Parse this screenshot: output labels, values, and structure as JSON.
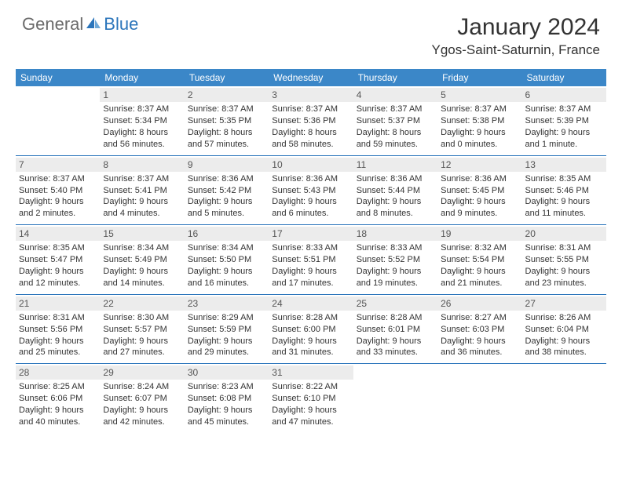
{
  "logo": {
    "text1": "General",
    "text2": "Blue"
  },
  "title": "January 2024",
  "location": "Ygos-Saint-Saturnin, France",
  "colors": {
    "header_bg": "#3b87c8",
    "header_text": "#ffffff",
    "rule": "#2b75bb",
    "daynum_bg": "#ececec",
    "body_text": "#333333",
    "logo_gray": "#6b6b6b",
    "logo_blue": "#2b75bb"
  },
  "weekdays": [
    "Sunday",
    "Monday",
    "Tuesday",
    "Wednesday",
    "Thursday",
    "Friday",
    "Saturday"
  ],
  "weeks": [
    [
      {
        "day": "",
        "sunrise": "",
        "sunset": "",
        "daylight1": "",
        "daylight2": ""
      },
      {
        "day": "1",
        "sunrise": "Sunrise: 8:37 AM",
        "sunset": "Sunset: 5:34 PM",
        "daylight1": "Daylight: 8 hours",
        "daylight2": "and 56 minutes."
      },
      {
        "day": "2",
        "sunrise": "Sunrise: 8:37 AM",
        "sunset": "Sunset: 5:35 PM",
        "daylight1": "Daylight: 8 hours",
        "daylight2": "and 57 minutes."
      },
      {
        "day": "3",
        "sunrise": "Sunrise: 8:37 AM",
        "sunset": "Sunset: 5:36 PM",
        "daylight1": "Daylight: 8 hours",
        "daylight2": "and 58 minutes."
      },
      {
        "day": "4",
        "sunrise": "Sunrise: 8:37 AM",
        "sunset": "Sunset: 5:37 PM",
        "daylight1": "Daylight: 8 hours",
        "daylight2": "and 59 minutes."
      },
      {
        "day": "5",
        "sunrise": "Sunrise: 8:37 AM",
        "sunset": "Sunset: 5:38 PM",
        "daylight1": "Daylight: 9 hours",
        "daylight2": "and 0 minutes."
      },
      {
        "day": "6",
        "sunrise": "Sunrise: 8:37 AM",
        "sunset": "Sunset: 5:39 PM",
        "daylight1": "Daylight: 9 hours",
        "daylight2": "and 1 minute."
      }
    ],
    [
      {
        "day": "7",
        "sunrise": "Sunrise: 8:37 AM",
        "sunset": "Sunset: 5:40 PM",
        "daylight1": "Daylight: 9 hours",
        "daylight2": "and 2 minutes."
      },
      {
        "day": "8",
        "sunrise": "Sunrise: 8:37 AM",
        "sunset": "Sunset: 5:41 PM",
        "daylight1": "Daylight: 9 hours",
        "daylight2": "and 4 minutes."
      },
      {
        "day": "9",
        "sunrise": "Sunrise: 8:36 AM",
        "sunset": "Sunset: 5:42 PM",
        "daylight1": "Daylight: 9 hours",
        "daylight2": "and 5 minutes."
      },
      {
        "day": "10",
        "sunrise": "Sunrise: 8:36 AM",
        "sunset": "Sunset: 5:43 PM",
        "daylight1": "Daylight: 9 hours",
        "daylight2": "and 6 minutes."
      },
      {
        "day": "11",
        "sunrise": "Sunrise: 8:36 AM",
        "sunset": "Sunset: 5:44 PM",
        "daylight1": "Daylight: 9 hours",
        "daylight2": "and 8 minutes."
      },
      {
        "day": "12",
        "sunrise": "Sunrise: 8:36 AM",
        "sunset": "Sunset: 5:45 PM",
        "daylight1": "Daylight: 9 hours",
        "daylight2": "and 9 minutes."
      },
      {
        "day": "13",
        "sunrise": "Sunrise: 8:35 AM",
        "sunset": "Sunset: 5:46 PM",
        "daylight1": "Daylight: 9 hours",
        "daylight2": "and 11 minutes."
      }
    ],
    [
      {
        "day": "14",
        "sunrise": "Sunrise: 8:35 AM",
        "sunset": "Sunset: 5:47 PM",
        "daylight1": "Daylight: 9 hours",
        "daylight2": "and 12 minutes."
      },
      {
        "day": "15",
        "sunrise": "Sunrise: 8:34 AM",
        "sunset": "Sunset: 5:49 PM",
        "daylight1": "Daylight: 9 hours",
        "daylight2": "and 14 minutes."
      },
      {
        "day": "16",
        "sunrise": "Sunrise: 8:34 AM",
        "sunset": "Sunset: 5:50 PM",
        "daylight1": "Daylight: 9 hours",
        "daylight2": "and 16 minutes."
      },
      {
        "day": "17",
        "sunrise": "Sunrise: 8:33 AM",
        "sunset": "Sunset: 5:51 PM",
        "daylight1": "Daylight: 9 hours",
        "daylight2": "and 17 minutes."
      },
      {
        "day": "18",
        "sunrise": "Sunrise: 8:33 AM",
        "sunset": "Sunset: 5:52 PM",
        "daylight1": "Daylight: 9 hours",
        "daylight2": "and 19 minutes."
      },
      {
        "day": "19",
        "sunrise": "Sunrise: 8:32 AM",
        "sunset": "Sunset: 5:54 PM",
        "daylight1": "Daylight: 9 hours",
        "daylight2": "and 21 minutes."
      },
      {
        "day": "20",
        "sunrise": "Sunrise: 8:31 AM",
        "sunset": "Sunset: 5:55 PM",
        "daylight1": "Daylight: 9 hours",
        "daylight2": "and 23 minutes."
      }
    ],
    [
      {
        "day": "21",
        "sunrise": "Sunrise: 8:31 AM",
        "sunset": "Sunset: 5:56 PM",
        "daylight1": "Daylight: 9 hours",
        "daylight2": "and 25 minutes."
      },
      {
        "day": "22",
        "sunrise": "Sunrise: 8:30 AM",
        "sunset": "Sunset: 5:57 PM",
        "daylight1": "Daylight: 9 hours",
        "daylight2": "and 27 minutes."
      },
      {
        "day": "23",
        "sunrise": "Sunrise: 8:29 AM",
        "sunset": "Sunset: 5:59 PM",
        "daylight1": "Daylight: 9 hours",
        "daylight2": "and 29 minutes."
      },
      {
        "day": "24",
        "sunrise": "Sunrise: 8:28 AM",
        "sunset": "Sunset: 6:00 PM",
        "daylight1": "Daylight: 9 hours",
        "daylight2": "and 31 minutes."
      },
      {
        "day": "25",
        "sunrise": "Sunrise: 8:28 AM",
        "sunset": "Sunset: 6:01 PM",
        "daylight1": "Daylight: 9 hours",
        "daylight2": "and 33 minutes."
      },
      {
        "day": "26",
        "sunrise": "Sunrise: 8:27 AM",
        "sunset": "Sunset: 6:03 PM",
        "daylight1": "Daylight: 9 hours",
        "daylight2": "and 36 minutes."
      },
      {
        "day": "27",
        "sunrise": "Sunrise: 8:26 AM",
        "sunset": "Sunset: 6:04 PM",
        "daylight1": "Daylight: 9 hours",
        "daylight2": "and 38 minutes."
      }
    ],
    [
      {
        "day": "28",
        "sunrise": "Sunrise: 8:25 AM",
        "sunset": "Sunset: 6:06 PM",
        "daylight1": "Daylight: 9 hours",
        "daylight2": "and 40 minutes."
      },
      {
        "day": "29",
        "sunrise": "Sunrise: 8:24 AM",
        "sunset": "Sunset: 6:07 PM",
        "daylight1": "Daylight: 9 hours",
        "daylight2": "and 42 minutes."
      },
      {
        "day": "30",
        "sunrise": "Sunrise: 8:23 AM",
        "sunset": "Sunset: 6:08 PM",
        "daylight1": "Daylight: 9 hours",
        "daylight2": "and 45 minutes."
      },
      {
        "day": "31",
        "sunrise": "Sunrise: 8:22 AM",
        "sunset": "Sunset: 6:10 PM",
        "daylight1": "Daylight: 9 hours",
        "daylight2": "and 47 minutes."
      },
      {
        "day": "",
        "sunrise": "",
        "sunset": "",
        "daylight1": "",
        "daylight2": ""
      },
      {
        "day": "",
        "sunrise": "",
        "sunset": "",
        "daylight1": "",
        "daylight2": ""
      },
      {
        "day": "",
        "sunrise": "",
        "sunset": "",
        "daylight1": "",
        "daylight2": ""
      }
    ]
  ]
}
